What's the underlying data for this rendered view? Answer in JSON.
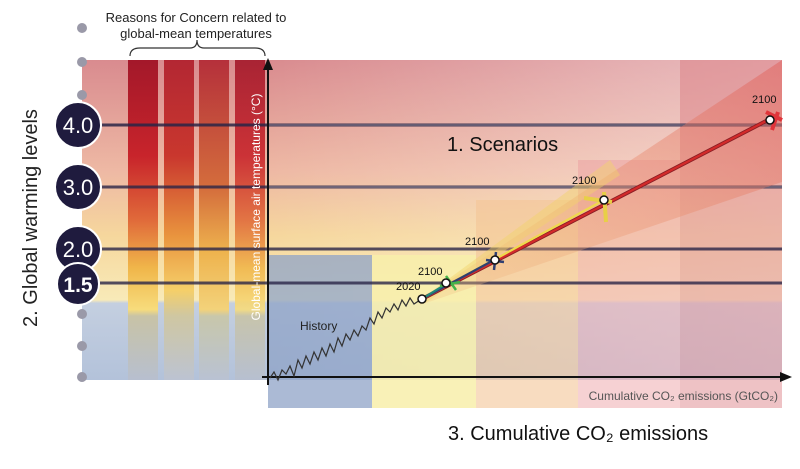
{
  "rfc": {
    "title_line1": "Reasons for Concern related to",
    "title_line2": "global-mean temperatures"
  },
  "warming_levels": {
    "title": "2. Global warming levels",
    "levels": [
      "4.0",
      "3.0",
      "2.0",
      "1.5"
    ]
  },
  "axes": {
    "y_label": "Global-mean surface air temperatures (°C)",
    "x_label": "Cumulative CO₂ emissions (GtCO₂)"
  },
  "labels": {
    "scenarios": "1. Scenarios",
    "history": "History",
    "emissions": "3. Cumulative CO₂ emissions"
  },
  "point_labels": {
    "p2020": "2020",
    "p2100_a": "2100",
    "p2100_b": "2100",
    "p2100_c": "2100",
    "p2100_d": "2100"
  },
  "colors": {
    "band_red": "#c8242b",
    "band_orange": "#e9893a",
    "band_yellow": "#f4d97a",
    "history_blue": "#9fb1cf",
    "level_line": "#2a2547",
    "circle_fill": "#1f1b3e"
  }
}
